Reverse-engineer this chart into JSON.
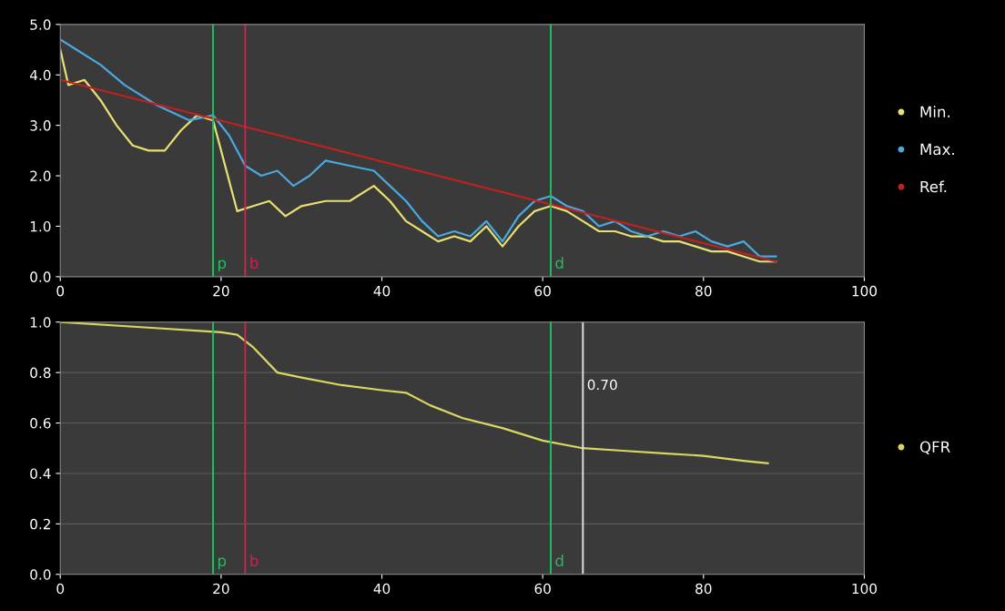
{
  "chart_data": [
    {
      "type": "line",
      "xlim": [
        0,
        100
      ],
      "xticks": [
        0,
        20,
        40,
        60,
        80,
        100
      ],
      "ylim": [
        0,
        5
      ],
      "yticks": [
        {
          "value": 0,
          "label": "0.0"
        },
        {
          "value": 1,
          "label": "1.0"
        },
        {
          "value": 2,
          "label": "2.0"
        },
        {
          "value": 3,
          "label": "3.0"
        },
        {
          "value": 4,
          "label": "4.0"
        },
        {
          "value": 5,
          "label": "5.0"
        }
      ],
      "grid": false,
      "legend": "right",
      "series": [
        {
          "name": "Min.",
          "color": "#e8e070",
          "x": [
            0,
            1,
            3,
            5,
            7,
            9,
            11,
            13,
            15,
            17,
            19,
            20,
            22,
            24,
            26,
            28,
            30,
            33,
            36,
            39,
            41,
            43,
            45,
            47,
            49,
            51,
            53,
            55,
            57,
            59,
            61,
            63,
            65,
            67,
            69,
            71,
            73,
            75,
            77,
            79,
            81,
            83,
            85,
            87,
            89
          ],
          "values": [
            4.5,
            3.8,
            3.9,
            3.5,
            3.0,
            2.6,
            2.5,
            2.5,
            2.9,
            3.2,
            3.1,
            2.5,
            1.3,
            1.4,
            1.5,
            1.2,
            1.4,
            1.5,
            1.5,
            1.8,
            1.5,
            1.1,
            0.9,
            0.7,
            0.8,
            0.7,
            1.0,
            0.6,
            1.0,
            1.3,
            1.4,
            1.3,
            1.1,
            0.9,
            0.9,
            0.8,
            0.8,
            0.7,
            0.7,
            0.6,
            0.5,
            0.5,
            0.4,
            0.3,
            0.3
          ]
        },
        {
          "name": "Max.",
          "color": "#4aa8e0",
          "x": [
            0,
            2,
            5,
            8,
            12,
            16,
            19,
            21,
            23,
            25,
            27,
            29,
            31,
            33,
            36,
            39,
            41,
            43,
            45,
            47,
            49,
            51,
            53,
            55,
            57,
            59,
            61,
            63,
            65,
            67,
            69,
            71,
            73,
            75,
            77,
            79,
            81,
            83,
            85,
            87,
            89
          ],
          "values": [
            4.7,
            4.5,
            4.2,
            3.8,
            3.4,
            3.1,
            3.2,
            2.8,
            2.2,
            2.0,
            2.1,
            1.8,
            2.0,
            2.3,
            2.2,
            2.1,
            1.8,
            1.5,
            1.1,
            0.8,
            0.9,
            0.8,
            1.1,
            0.7,
            1.2,
            1.5,
            1.6,
            1.4,
            1.3,
            1.0,
            1.1,
            0.9,
            0.8,
            0.9,
            0.8,
            0.9,
            0.7,
            0.6,
            0.7,
            0.4,
            0.4
          ]
        },
        {
          "name": "Ref.",
          "color": "#c02020",
          "x": [
            0,
            89
          ],
          "values": [
            3.9,
            0.3
          ]
        }
      ],
      "ref_lines": [
        {
          "axis": "x",
          "value": 19,
          "label": "p",
          "color": "#20c060"
        },
        {
          "axis": "x",
          "value": 23,
          "label": "b",
          "color": "#d02050"
        },
        {
          "axis": "x",
          "value": 61,
          "label": "d",
          "color": "#20c060"
        }
      ]
    },
    {
      "type": "line",
      "xlim": [
        0,
        100
      ],
      "xticks": [
        0,
        20,
        40,
        60,
        80,
        100
      ],
      "ylim": [
        0,
        1
      ],
      "yticks": [
        {
          "value": 0,
          "label": "0.0"
        },
        {
          "value": 0.2,
          "label": "0.2"
        },
        {
          "value": 0.4,
          "label": "0.4"
        },
        {
          "value": 0.6,
          "label": "0.6"
        },
        {
          "value": 0.8,
          "label": "0.8"
        },
        {
          "value": 1,
          "label": "1.0"
        }
      ],
      "grid": "y",
      "legend": "right",
      "series": [
        {
          "name": "QFR",
          "color": "#d8d860",
          "x": [
            0,
            10,
            20,
            22,
            24,
            27,
            30,
            35,
            40,
            43,
            46,
            50,
            55,
            60,
            65,
            70,
            75,
            80,
            85,
            88
          ],
          "values": [
            1.0,
            0.98,
            0.96,
            0.95,
            0.9,
            0.8,
            0.78,
            0.75,
            0.73,
            0.72,
            0.67,
            0.62,
            0.58,
            0.53,
            0.5,
            0.49,
            0.48,
            0.47,
            0.45,
            0.44
          ]
        }
      ],
      "ref_lines": [
        {
          "axis": "x",
          "value": 19,
          "label": "p",
          "color": "#20c060"
        },
        {
          "axis": "x",
          "value": 23,
          "label": "b",
          "color": "#d02050"
        },
        {
          "axis": "x",
          "value": 61,
          "label": "d",
          "color": "#20c060"
        },
        {
          "axis": "x",
          "value": 65,
          "color": "#e0e0e0"
        }
      ],
      "annotations": [
        {
          "text": "0.70",
          "x": 65,
          "y": 0.72
        }
      ]
    }
  ]
}
